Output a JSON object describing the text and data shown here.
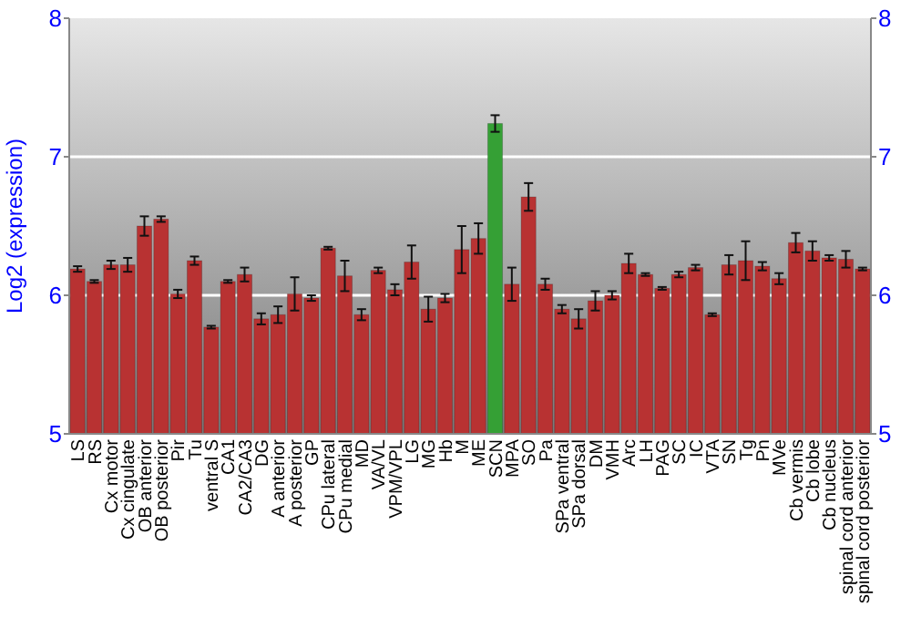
{
  "chart_data": {
    "type": "bar",
    "ylabel": "Log2 (expression)",
    "categories": [
      "LS",
      "RS",
      "Cx motor",
      "Cx cingulate",
      "OB anterior",
      "OB posterior",
      "Pir",
      "Tu",
      "ventral S",
      "CA1",
      "CA2/CA3",
      "DG",
      "A anterior",
      "A posterior",
      "GP",
      "CPu lateral",
      "CPu medial",
      "MD",
      "VA/VL",
      "VPM/VPL",
      "LG",
      "MG",
      "Hb",
      "M",
      "ME",
      "SCN",
      "MPA",
      "SO",
      "Pa",
      "SPa ventral",
      "SPa dorsal",
      "DM",
      "VMH",
      "Arc",
      "LH",
      "PAG",
      "SC",
      "IC",
      "VTA",
      "SN",
      "Tg",
      "Pn",
      "MVe",
      "Cb vermis",
      "Cb lobe",
      "Cb nucleus",
      "spinal cord anterior",
      "spinal cord posterior"
    ],
    "values": [
      6.19,
      6.1,
      6.22,
      6.22,
      6.5,
      6.55,
      6.01,
      6.25,
      5.77,
      6.1,
      6.15,
      5.83,
      5.86,
      6.01,
      5.98,
      6.34,
      6.14,
      5.86,
      6.18,
      6.04,
      6.24,
      5.9,
      5.98,
      6.33,
      6.41,
      7.24,
      6.08,
      6.71,
      6.08,
      5.9,
      5.83,
      5.96,
      6.0,
      6.23,
      6.15,
      6.05,
      6.15,
      6.2,
      5.86,
      6.22,
      6.25,
      6.21,
      6.12,
      6.38,
      6.32,
      6.27,
      6.26,
      6.19
    ],
    "errors": [
      0.02,
      0.01,
      0.03,
      0.05,
      0.07,
      0.02,
      0.03,
      0.03,
      0.01,
      0.01,
      0.05,
      0.04,
      0.06,
      0.12,
      0.02,
      0.01,
      0.11,
      0.04,
      0.02,
      0.04,
      0.12,
      0.09,
      0.03,
      0.17,
      0.11,
      0.06,
      0.12,
      0.1,
      0.04,
      0.03,
      0.07,
      0.07,
      0.03,
      0.07,
      0.01,
      0.01,
      0.02,
      0.02,
      0.01,
      0.07,
      0.14,
      0.03,
      0.04,
      0.07,
      0.07,
      0.02,
      0.06,
      0.01
    ],
    "colors": [
      "#b83232",
      "#b83232",
      "#b83232",
      "#b83232",
      "#b83232",
      "#b83232",
      "#b83232",
      "#b83232",
      "#b83232",
      "#b83232",
      "#b83232",
      "#b83232",
      "#b83232",
      "#b83232",
      "#b83232",
      "#b83232",
      "#b83232",
      "#b83232",
      "#b83232",
      "#b83232",
      "#b83232",
      "#b83232",
      "#b83232",
      "#b83232",
      "#b83232",
      "#35a035",
      "#b83232",
      "#b83232",
      "#b83232",
      "#b83232",
      "#b83232",
      "#b83232",
      "#b83232",
      "#b83232",
      "#b83232",
      "#b83232",
      "#b83232",
      "#b83232",
      "#b83232",
      "#b83232",
      "#b83232",
      "#b83232",
      "#b83232",
      "#b83232",
      "#b83232",
      "#b83232",
      "#b83232",
      "#b83232"
    ],
    "ylim": [
      5,
      8
    ],
    "yticks": [
      5,
      6,
      7,
      8
    ],
    "y2lim": [
      5,
      8
    ],
    "y2ticks": [
      5,
      6,
      7,
      8
    ],
    "grid": "y"
  }
}
